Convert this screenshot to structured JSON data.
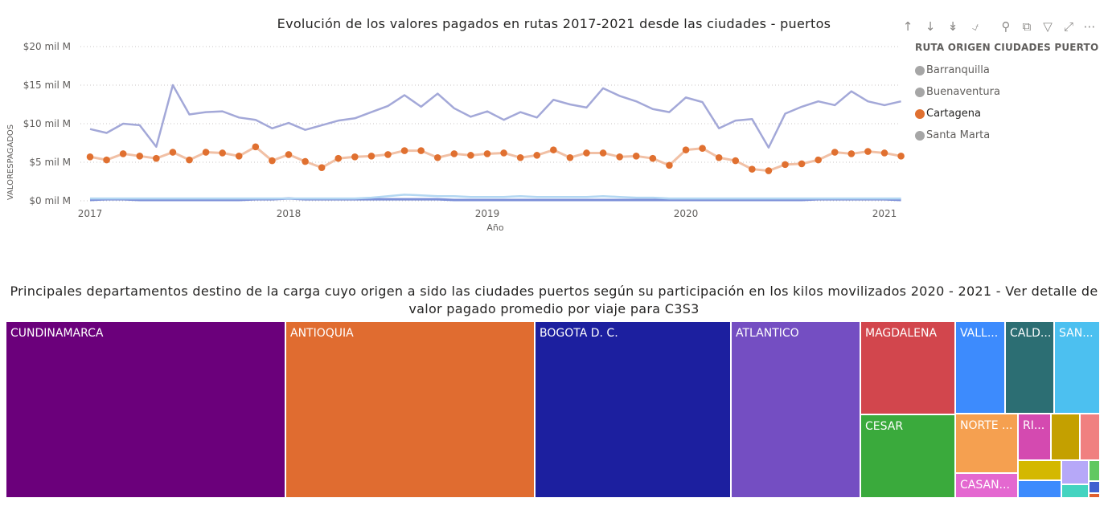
{
  "line_chart": {
    "title": "Evolución de los valores pagados en rutas 2017-2021 desde las ciudades - puertos",
    "legend_title": "RUTA ORIGEN CIUDADES PUERTO",
    "colors": {
      "Barranquilla": "#7b8fd8",
      "Buenaventura": "#a3a8d8",
      "Cartagena": "#e07030",
      "Cartagena_line": "#f1c0a5",
      "Santa Marta": "#b3d7f2",
      "legend_inactive": "#a6a6a6"
    },
    "toolbar_icons": [
      "arrow-up-icon",
      "arrow-down-icon",
      "double-arrow-down-icon",
      "expand-hierarchy-icon",
      "pin-icon",
      "copy-icon",
      "filter-icon",
      "focus-mode-icon",
      "more-options-icon"
    ]
  },
  "chart_data": [
    {
      "type": "line",
      "title": "Evolución de los valores pagados en rutas 2017-2021 desde las ciudades - puertos",
      "xlabel": "Año",
      "ylabel": "VALORESPAGADOS",
      "x_ticks": [
        "2017",
        "2018",
        "2019",
        "2020",
        "2021"
      ],
      "x_range": [
        "2017-01",
        "2021-02"
      ],
      "y_ticks": [
        "$0 mil M",
        "$5 mil M",
        "$10 mil M",
        "$15 mil M",
        "$20 mil M"
      ],
      "ylim": [
        0,
        20
      ],
      "y_unit": "mil M",
      "grid": "horizontal dotted",
      "legend_position": "right",
      "x": [
        "2017-01",
        "2017-02",
        "2017-03",
        "2017-04",
        "2017-05",
        "2017-06",
        "2017-07",
        "2017-08",
        "2017-09",
        "2017-10",
        "2017-11",
        "2017-12",
        "2018-01",
        "2018-02",
        "2018-03",
        "2018-04",
        "2018-05",
        "2018-06",
        "2018-07",
        "2018-08",
        "2018-09",
        "2018-10",
        "2018-11",
        "2018-12",
        "2019-01",
        "2019-02",
        "2019-03",
        "2019-04",
        "2019-05",
        "2019-06",
        "2019-07",
        "2019-08",
        "2019-09",
        "2019-10",
        "2019-11",
        "2019-12",
        "2020-01",
        "2020-02",
        "2020-03",
        "2020-04",
        "2020-05",
        "2020-06",
        "2020-07",
        "2020-08",
        "2020-09",
        "2020-10",
        "2020-11",
        "2020-12",
        "2021-01",
        "2021-02"
      ],
      "series": [
        {
          "name": "Buenaventura",
          "values": [
            9.3,
            8.8,
            10.0,
            9.8,
            7.0,
            15.0,
            11.2,
            11.5,
            11.6,
            10.8,
            10.5,
            9.4,
            10.1,
            9.2,
            9.8,
            10.4,
            10.7,
            11.5,
            12.3,
            13.7,
            12.2,
            13.9,
            12.0,
            10.9,
            11.6,
            10.5,
            11.5,
            10.8,
            13.1,
            12.5,
            12.1,
            14.6,
            13.6,
            12.9,
            11.9,
            11.5,
            13.4,
            12.8,
            9.4,
            10.4,
            10.6,
            6.9,
            11.3,
            12.2,
            12.9,
            12.4,
            14.2,
            12.9,
            12.4,
            12.9
          ]
        },
        {
          "name": "Cartagena",
          "values": [
            5.7,
            5.3,
            6.1,
            5.8,
            5.5,
            6.3,
            5.3,
            6.3,
            6.2,
            5.8,
            7.0,
            5.2,
            6.0,
            5.1,
            4.3,
            5.5,
            5.7,
            5.8,
            6.0,
            6.5,
            6.5,
            5.6,
            6.1,
            5.9,
            6.1,
            6.2,
            5.6,
            5.9,
            6.6,
            5.6,
            6.2,
            6.2,
            5.7,
            5.8,
            5.5,
            4.6,
            6.6,
            6.8,
            5.6,
            5.2,
            4.1,
            3.9,
            4.7,
            4.8,
            5.3,
            6.3,
            6.1,
            6.4,
            6.2,
            5.8
          ]
        },
        {
          "name": "Santa Marta",
          "values": [
            0.3,
            0.3,
            0.3,
            0.3,
            0.3,
            0.3,
            0.3,
            0.3,
            0.3,
            0.3,
            0.3,
            0.3,
            0.3,
            0.3,
            0.3,
            0.3,
            0.3,
            0.4,
            0.6,
            0.8,
            0.7,
            0.6,
            0.6,
            0.5,
            0.5,
            0.5,
            0.6,
            0.5,
            0.5,
            0.5,
            0.5,
            0.6,
            0.5,
            0.4,
            0.4,
            0.3,
            0.3,
            0.3,
            0.3,
            0.3,
            0.3,
            0.3,
            0.3,
            0.3,
            0.3,
            0.3,
            0.3,
            0.3,
            0.3,
            0.3
          ]
        },
        {
          "name": "Barranquilla",
          "values": [
            0.1,
            0.2,
            0.2,
            0.1,
            0.1,
            0.1,
            0.1,
            0.1,
            0.1,
            0.1,
            0.2,
            0.2,
            0.3,
            0.2,
            0.2,
            0.2,
            0.2,
            0.2,
            0.2,
            0.2,
            0.2,
            0.2,
            0.1,
            0.1,
            0.1,
            0.1,
            0.1,
            0.1,
            0.1,
            0.1,
            0.1,
            0.1,
            0.1,
            0.1,
            0.1,
            0.1,
            0.1,
            0.1,
            0.1,
            0.1,
            0.1,
            0.1,
            0.1,
            0.1,
            0.2,
            0.2,
            0.2,
            0.2,
            0.2,
            0.1
          ]
        }
      ],
      "legend": [
        "Barranquilla",
        "Buenaventura",
        "Cartagena",
        "Santa Marta"
      ],
      "selected_series": "Cartagena"
    },
    {
      "type": "treemap",
      "title": "Principales departamentos destino de la carga cuyo origen a sido las ciudades puertos según su participación en los kilos movilizados 2020 - 2021 - Ver detalle de valor pagado promedio por viaje para C3S3",
      "tiles": [
        {
          "label": "CUNDINAMARCA",
          "color": "#6b007b"
        },
        {
          "label": "ANTIOQUIA",
          "color": "#e06c30"
        },
        {
          "label": "BOGOTA D. C.",
          "color": "#1c1f9f"
        },
        {
          "label": "ATLANTICO",
          "color": "#744ec2"
        },
        {
          "label": "MAGDALENA",
          "color": "#d2464d"
        },
        {
          "label": "VALL...",
          "color": "#3d8bfd"
        },
        {
          "label": "CALD...",
          "color": "#2c6e73"
        },
        {
          "label": "SAN...",
          "color": "#4cc0f0"
        },
        {
          "label": "CESAR",
          "color": "#3aaa3c"
        },
        {
          "label": "NORTE ...",
          "color": "#f5a050"
        },
        {
          "label": "RI...",
          "color": "#d44ab0"
        },
        {
          "label": "",
          "color": "#c4a000"
        },
        {
          "label": "",
          "color": "#f08080"
        },
        {
          "label": "CASAN...",
          "color": "#e468d0"
        },
        {
          "label": "",
          "color": "#d4b800"
        },
        {
          "label": "",
          "color": "#b6a8f8"
        },
        {
          "label": "",
          "color": "#60c860"
        },
        {
          "label": "",
          "color": "#3d8bfd"
        },
        {
          "label": "",
          "color": "#44d4c0"
        },
        {
          "label": "",
          "color": "#4060d0"
        },
        {
          "label": "",
          "color": "#e06030"
        }
      ]
    }
  ]
}
